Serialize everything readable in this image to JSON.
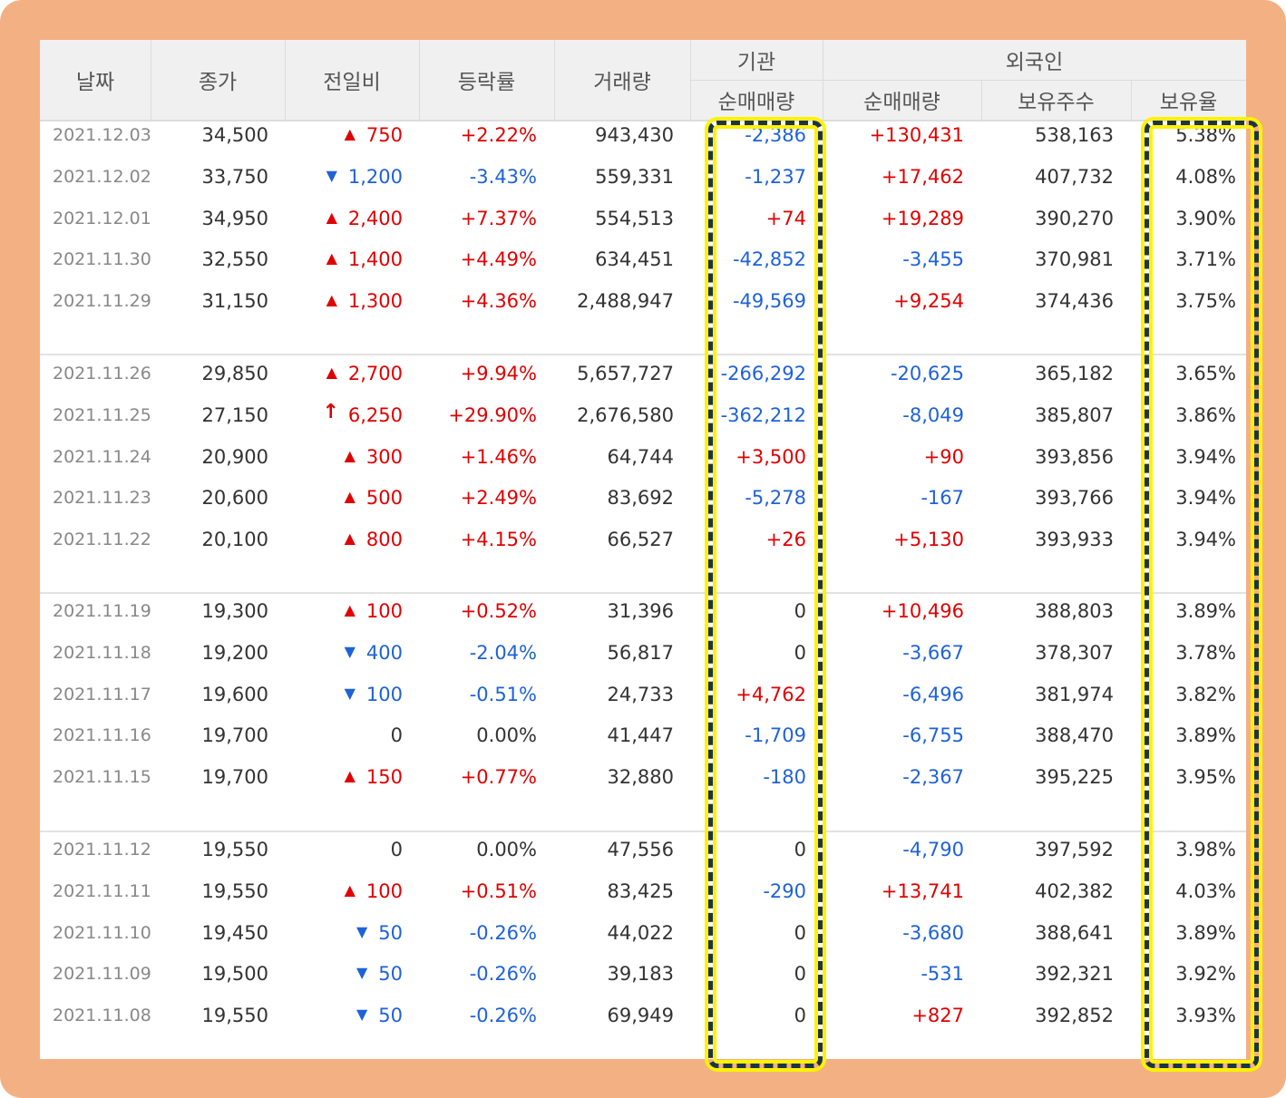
{
  "header": {
    "date": "날짜",
    "close": "종가",
    "change": "전일비",
    "rate": "등락률",
    "volume": "거래량",
    "institution": "기관",
    "inst_net": "순매매량",
    "foreign": "외국인",
    "foreign_net": "순매매량",
    "holdings": "보유주수",
    "holding_ratio": "보유율"
  },
  "colors": {
    "up": "#e00000",
    "down": "#1e62d8",
    "highlight_border": "#1d3349",
    "highlight_glow": "#fff200",
    "frame": "#f3b183"
  },
  "rows": [
    {
      "date": "2021.12.03",
      "close": "34,500",
      "dir": "up",
      "arrow": "▲",
      "change": "750",
      "rate": "+2.22%",
      "volume": "943,430",
      "inst": "-2,386",
      "foreign": "+130,431",
      "holdings": "538,163",
      "ratio": "5.38%"
    },
    {
      "date": "2021.12.02",
      "close": "33,750",
      "dir": "down",
      "arrow": "▼",
      "change": "1,200",
      "rate": "-3.43%",
      "volume": "559,331",
      "inst": "-1,237",
      "foreign": "+17,462",
      "holdings": "407,732",
      "ratio": "4.08%"
    },
    {
      "date": "2021.12.01",
      "close": "34,950",
      "dir": "up",
      "arrow": "▲",
      "change": "2,400",
      "rate": "+7.37%",
      "volume": "554,513",
      "inst": "+74",
      "foreign": "+19,289",
      "holdings": "390,270",
      "ratio": "3.90%"
    },
    {
      "date": "2021.11.30",
      "close": "32,550",
      "dir": "up",
      "arrow": "▲",
      "change": "1,400",
      "rate": "+4.49%",
      "volume": "634,451",
      "inst": "-42,852",
      "foreign": "-3,455",
      "holdings": "370,981",
      "ratio": "3.71%"
    },
    {
      "date": "2021.11.29",
      "close": "31,150",
      "dir": "up",
      "arrow": "▲",
      "change": "1,300",
      "rate": "+4.36%",
      "volume": "2,488,947",
      "inst": "-49,569",
      "foreign": "+9,254",
      "holdings": "374,436",
      "ratio": "3.75%"
    },
    {
      "date": "2021.11.26",
      "close": "29,850",
      "dir": "up",
      "arrow": "▲",
      "change": "2,700",
      "rate": "+9.94%",
      "volume": "5,657,727",
      "inst": "-266,292",
      "foreign": "-20,625",
      "holdings": "365,182",
      "ratio": "3.65%"
    },
    {
      "date": "2021.11.25",
      "close": "27,150",
      "dir": "up",
      "arrow": "🠕",
      "change": "6,250",
      "rate": "+29.90%",
      "volume": "2,676,580",
      "inst": "-362,212",
      "foreign": "-8,049",
      "holdings": "385,807",
      "ratio": "3.86%",
      "limit": true
    },
    {
      "date": "2021.11.24",
      "close": "20,900",
      "dir": "up",
      "arrow": "▲",
      "change": "300",
      "rate": "+1.46%",
      "volume": "64,744",
      "inst": "+3,500",
      "foreign": "+90",
      "holdings": "393,856",
      "ratio": "3.94%"
    },
    {
      "date": "2021.11.23",
      "close": "20,600",
      "dir": "up",
      "arrow": "▲",
      "change": "500",
      "rate": "+2.49%",
      "volume": "83,692",
      "inst": "-5,278",
      "foreign": "-167",
      "holdings": "393,766",
      "ratio": "3.94%"
    },
    {
      "date": "2021.11.22",
      "close": "20,100",
      "dir": "up",
      "arrow": "▲",
      "change": "800",
      "rate": "+4.15%",
      "volume": "66,527",
      "inst": "+26",
      "foreign": "+5,130",
      "holdings": "393,933",
      "ratio": "3.94%"
    },
    {
      "date": "2021.11.19",
      "close": "19,300",
      "dir": "up",
      "arrow": "▲",
      "change": "100",
      "rate": "+0.52%",
      "volume": "31,396",
      "inst": "0",
      "foreign": "+10,496",
      "holdings": "388,803",
      "ratio": "3.89%"
    },
    {
      "date": "2021.11.18",
      "close": "19,200",
      "dir": "down",
      "arrow": "▼",
      "change": "400",
      "rate": "-2.04%",
      "volume": "56,817",
      "inst": "0",
      "foreign": "-3,667",
      "holdings": "378,307",
      "ratio": "3.78%"
    },
    {
      "date": "2021.11.17",
      "close": "19,600",
      "dir": "down",
      "arrow": "▼",
      "change": "100",
      "rate": "-0.51%",
      "volume": "24,733",
      "inst": "+4,762",
      "foreign": "-6,496",
      "holdings": "381,974",
      "ratio": "3.82%"
    },
    {
      "date": "2021.11.16",
      "close": "19,700",
      "dir": "even",
      "arrow": "",
      "change": "0",
      "rate": "0.00%",
      "volume": "41,447",
      "inst": "-1,709",
      "foreign": "-6,755",
      "holdings": "388,470",
      "ratio": "3.89%"
    },
    {
      "date": "2021.11.15",
      "close": "19,700",
      "dir": "up",
      "arrow": "▲",
      "change": "150",
      "rate": "+0.77%",
      "volume": "32,880",
      "inst": "-180",
      "foreign": "-2,367",
      "holdings": "395,225",
      "ratio": "3.95%"
    },
    {
      "date": "2021.11.12",
      "close": "19,550",
      "dir": "even",
      "arrow": "",
      "change": "0",
      "rate": "0.00%",
      "volume": "47,556",
      "inst": "0",
      "foreign": "-4,790",
      "holdings": "397,592",
      "ratio": "3.98%"
    },
    {
      "date": "2021.11.11",
      "close": "19,550",
      "dir": "up",
      "arrow": "▲",
      "change": "100",
      "rate": "+0.51%",
      "volume": "83,425",
      "inst": "-290",
      "foreign": "+13,741",
      "holdings": "402,382",
      "ratio": "4.03%"
    },
    {
      "date": "2021.11.10",
      "close": "19,450",
      "dir": "down",
      "arrow": "▼",
      "change": "50",
      "rate": "-0.26%",
      "volume": "44,022",
      "inst": "0",
      "foreign": "-3,680",
      "holdings": "388,641",
      "ratio": "3.89%"
    },
    {
      "date": "2021.11.09",
      "close": "19,500",
      "dir": "down",
      "arrow": "▼",
      "change": "50",
      "rate": "-0.26%",
      "volume": "39,183",
      "inst": "0",
      "foreign": "-531",
      "holdings": "392,321",
      "ratio": "3.92%"
    },
    {
      "date": "2021.11.08",
      "close": "19,550",
      "dir": "down",
      "arrow": "▼",
      "change": "50",
      "rate": "-0.26%",
      "volume": "69,949",
      "inst": "0",
      "foreign": "+827",
      "holdings": "392,852",
      "ratio": "3.93%"
    }
  ]
}
